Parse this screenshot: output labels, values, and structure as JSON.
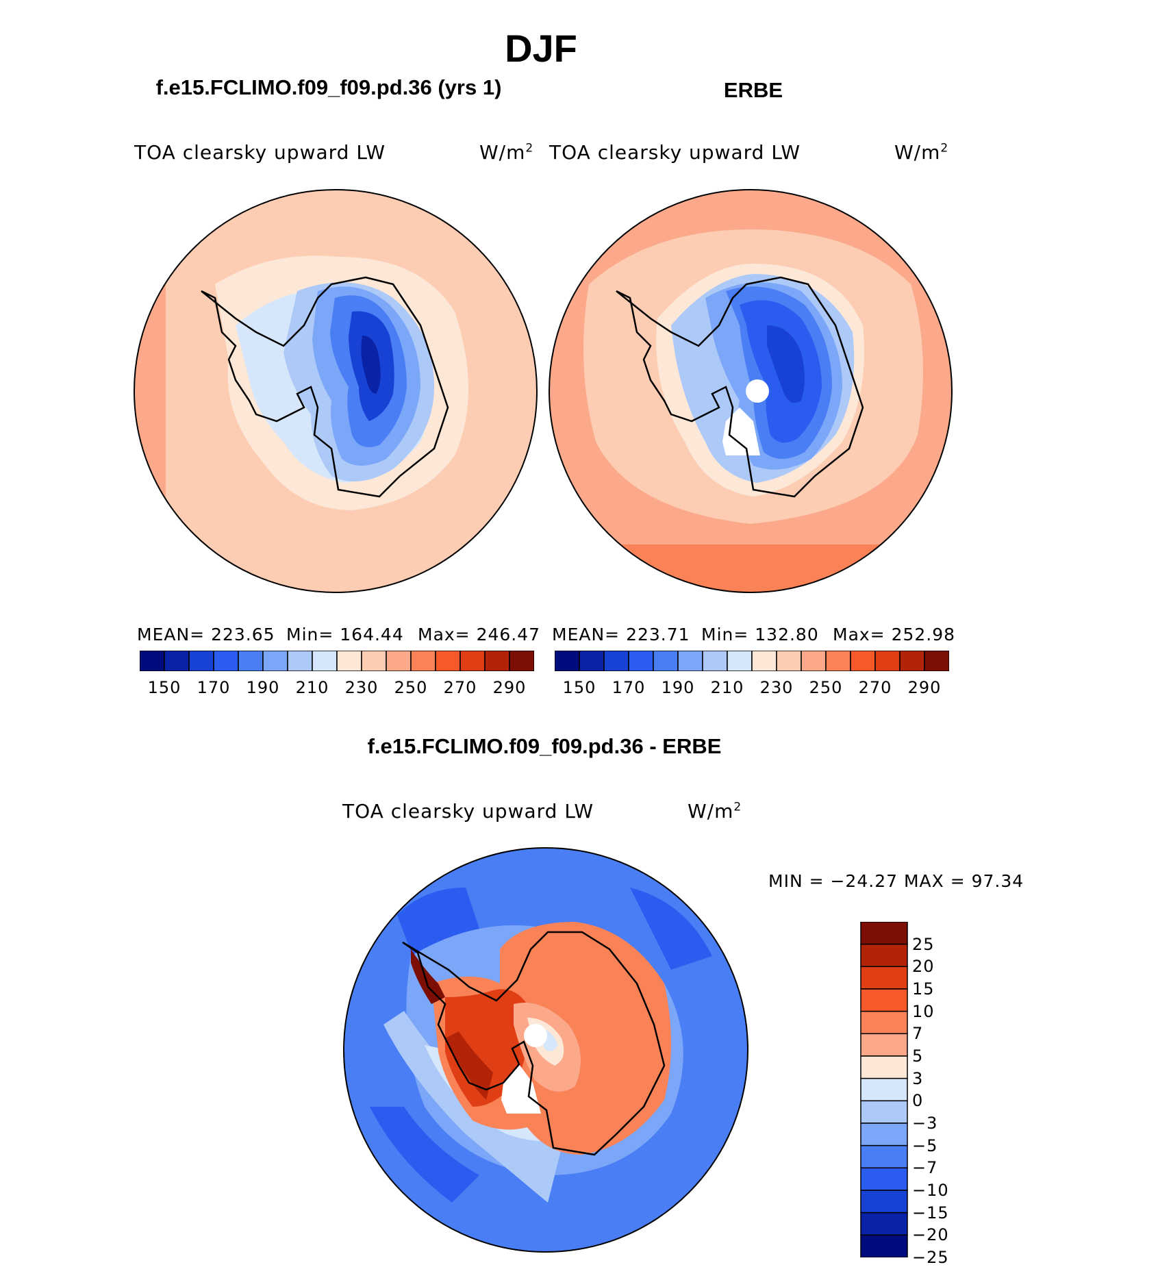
{
  "main_title": "DJF",
  "colors": {
    "model_scale": [
      "#000c7d",
      "#0a23a6",
      "#1742d4",
      "#2b5cf0",
      "#4a7ef5",
      "#7ca6f7",
      "#adc9f8",
      "#d6e6fb",
      "#fde8d8",
      "#fcccb3",
      "#fba98a",
      "#fa8257",
      "#f65a2a",
      "#e03e15",
      "#b32308",
      "#7d0e03"
    ],
    "diff_scale": [
      "#7d0e03",
      "#b32308",
      "#e03e15",
      "#f65a2a",
      "#fa8257",
      "#fba98a",
      "#fde8d8",
      "#d6e6fb",
      "#adc9f8",
      "#7ca6f7",
      "#4a7ef5",
      "#2b5cf0",
      "#1742d4",
      "#0a23a6",
      "#000c7d"
    ]
  },
  "panels": {
    "model": {
      "title": "f.e15.FCLIMO.f09_f09.pd.36 (yrs 1)",
      "variable": "TOA clearsky upward LW",
      "units": "W/m",
      "units_sup": "2",
      "mean": "MEAN= 223.65",
      "min": "Min= 164.44",
      "max": "Max= 246.47",
      "ticks": [
        "150",
        "170",
        "190",
        "210",
        "230",
        "250",
        "270",
        "290"
      ]
    },
    "obs": {
      "title": "ERBE",
      "variable": "TOA clearsky upward LW",
      "units": "W/m",
      "units_sup": "2",
      "mean": "MEAN= 223.71",
      "min": "Min= 132.80",
      "max": "Max= 252.98",
      "ticks": [
        "150",
        "170",
        "190",
        "210",
        "230",
        "250",
        "270",
        "290"
      ]
    },
    "diff": {
      "title": "f.e15.FCLIMO.f09_f09.pd.36 - ERBE",
      "variable": "TOA clearsky upward LW",
      "units": "W/m",
      "units_sup": "2",
      "minmax": "MIN = −24.27 MAX =  97.34",
      "ticks": [
        "25",
        "20",
        "15",
        "10",
        "7",
        "5",
        "3",
        "0",
        "−3",
        "−5",
        "−7",
        "−10",
        "−15",
        "−20",
        "−25"
      ]
    }
  }
}
